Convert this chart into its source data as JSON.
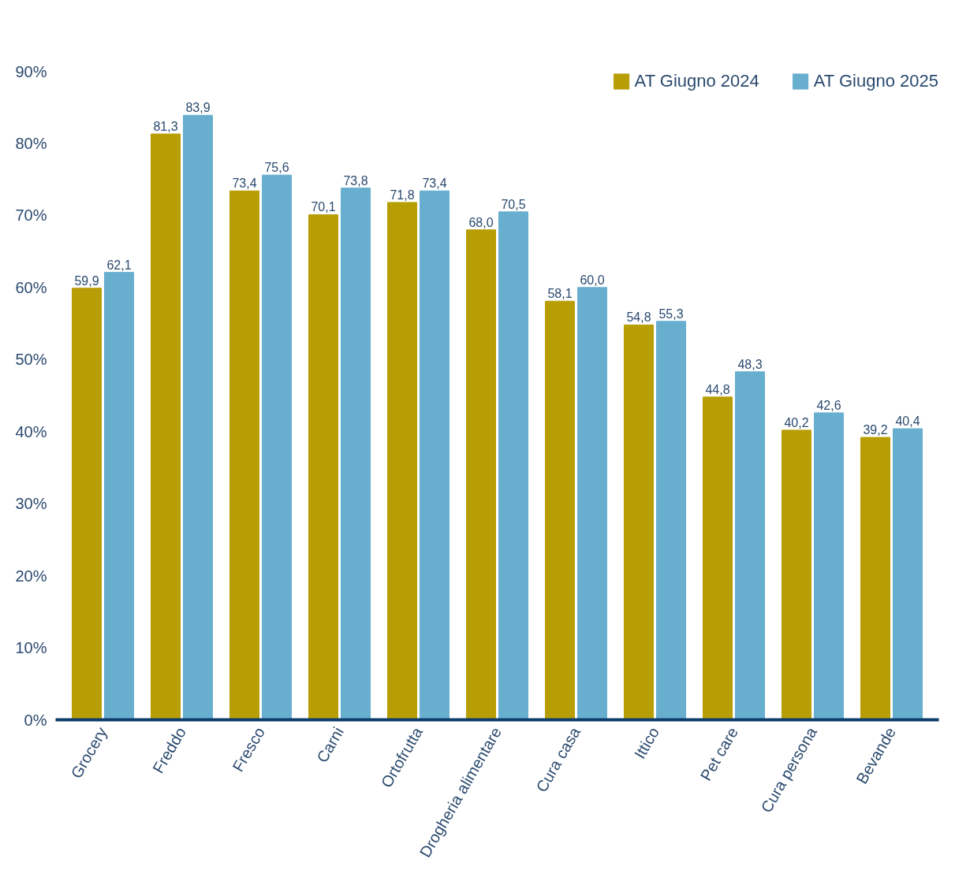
{
  "chart_data": {
    "type": "bar",
    "categories": [
      "Grocery",
      "Freddo",
      "Fresco",
      "Carni",
      "Ortofrutta",
      "Drogheria alimentare",
      "Cura casa",
      "Ittico",
      "Pet care",
      "Cura persona",
      "Bevande"
    ],
    "series": [
      {
        "name": "AT Giugno 2024",
        "color": "#b89e05",
        "values": [
          59.9,
          81.3,
          73.4,
          70.1,
          71.8,
          68.0,
          58.1,
          54.8,
          44.8,
          40.2,
          39.2
        ],
        "value_labels": [
          "59,9",
          "81,3",
          "73,4",
          "70,1",
          "71,8",
          "68,0",
          "58,1",
          "54,8",
          "44,8",
          "40,2",
          "39,2"
        ]
      },
      {
        "name": "AT Giugno 2025",
        "color": "#67aecf",
        "values": [
          62.1,
          83.9,
          75.6,
          73.8,
          73.4,
          70.5,
          60.0,
          55.3,
          48.3,
          42.6,
          40.4
        ],
        "value_labels": [
          "62,1",
          "83,9",
          "75,6",
          "73,8",
          "73,4",
          "70,5",
          "60,0",
          "55,3",
          "48,3",
          "42,6",
          "40,4"
        ]
      }
    ],
    "ylim": [
      0,
      90
    ],
    "yticks": [
      {
        "value": 0,
        "label": "0%"
      },
      {
        "value": 10,
        "label": "10%"
      },
      {
        "value": 20,
        "label": "20%"
      },
      {
        "value": 30,
        "label": "30%"
      },
      {
        "value": 40,
        "label": "40%"
      },
      {
        "value": 50,
        "label": "50%"
      },
      {
        "value": 60,
        "label": "60%"
      },
      {
        "value": 70,
        "label": "70%"
      },
      {
        "value": 80,
        "label": "80%"
      },
      {
        "value": 90,
        "label": "90%"
      }
    ],
    "grid": false,
    "legend": "top right"
  }
}
